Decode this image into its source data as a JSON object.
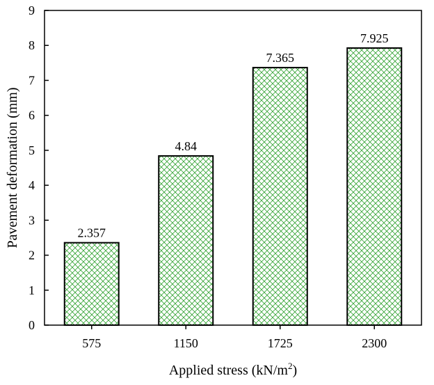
{
  "chart_data": {
    "type": "bar",
    "categories": [
      "575",
      "1150",
      "1725",
      "2300"
    ],
    "values": [
      2.357,
      4.84,
      7.365,
      7.925
    ],
    "data_labels": [
      "2.357",
      "4.84",
      "7.365",
      "7.925"
    ],
    "xlabel": "Applied stress (kN/m",
    "xlabel_superscript": "2",
    "xlabel_suffix": ")",
    "ylabel": "Pavement deformation (mm)",
    "ylim": [
      0,
      9
    ],
    "yticks": [
      "0",
      "1",
      "2",
      "3",
      "4",
      "5",
      "6",
      "7",
      "8",
      "9"
    ],
    "grid": false,
    "bar_fill_pattern": "green-crosshatch",
    "colors": {
      "hatch": "#33a333",
      "bar_fill": "#ffffff",
      "bar_edge": "#000000",
      "axis": "#000000"
    }
  }
}
